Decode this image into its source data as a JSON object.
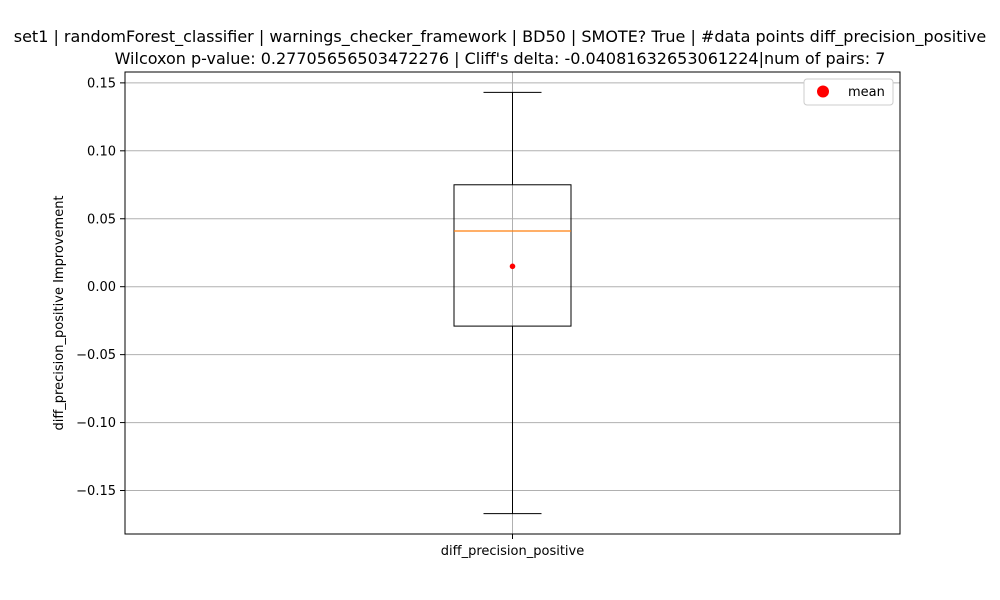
{
  "chart_data": {
    "type": "box",
    "title_lines": [
      "set1 | randomForest_classifier | warnings_checker_framework | BD50 | SMOTE? True | #data points diff_precision_positive",
      "Wilcoxon p-value: 0.27705656503472276 | Cliff's delta: -0.04081632653061224|num of pairs: 7"
    ],
    "xlabel": "",
    "ylabel": "diff_precision_positive Improvement",
    "categories": [
      "diff_precision_positive"
    ],
    "box": {
      "whisker_low": -0.167,
      "q1": -0.029,
      "median": 0.041,
      "q3": 0.075,
      "whisker_high": 0.143,
      "mean": 0.015
    },
    "ylim": [
      -0.182,
      0.158
    ],
    "yticks": [
      -0.15,
      -0.1,
      -0.05,
      0.0,
      0.05,
      0.1,
      0.15
    ],
    "ytick_labels": [
      "−0.15",
      "−0.10",
      "−0.05",
      "0.00",
      "0.05",
      "0.10",
      "0.15"
    ],
    "grid": true,
    "legend": {
      "position": "top-right",
      "entries": [
        {
          "label": "mean",
          "marker": "circle",
          "color": "#ff0000"
        }
      ]
    },
    "colors": {
      "box": "#000000",
      "median": "#ff7f0e",
      "mean": "#ff0000",
      "grid": "#b0b0b0"
    }
  }
}
